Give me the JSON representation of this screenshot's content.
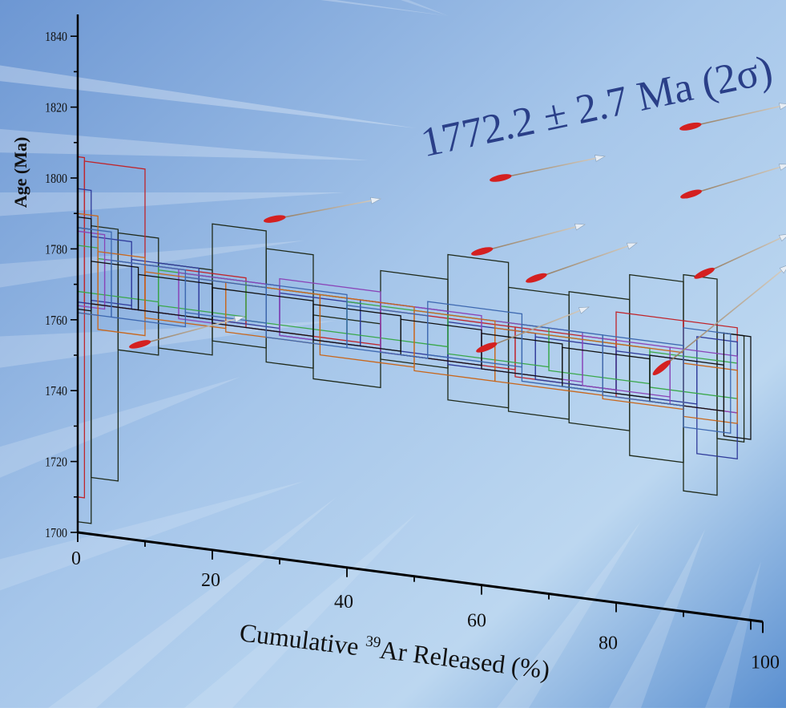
{
  "chart_data": {
    "type": "step",
    "title": "1772.2 ± 2.7 Ma (2σ)",
    "ylabel": "Age (Ma)",
    "xlabel": {
      "prefix": "Cumulative ",
      "superscript": "39",
      "suffix": "Ar Released (%)"
    },
    "xlim": [
      0,
      100
    ],
    "ylim": [
      1700,
      1845
    ],
    "x_ticks": [
      "0",
      "20",
      "40",
      "60",
      "80",
      "100"
    ],
    "y_ticks": [
      "1700",
      "1720",
      "1740",
      "1760",
      "1780",
      "1800",
      "1820",
      "1840"
    ],
    "plateau_age": 1772.2,
    "plateau_error_2sigma": 2.7,
    "grid": false,
    "legend": "none",
    "series": [
      {
        "color": "#1f2a1a",
        "steps": [
          [
            0,
            2,
            1703,
            1786
          ],
          [
            2,
            6,
            1716,
            1787
          ],
          [
            6,
            12,
            1753,
            1786
          ],
          [
            12,
            20,
            1755,
            1779
          ],
          [
            20,
            28,
            1759,
            1792
          ],
          [
            28,
            35,
            1755,
            1787
          ],
          [
            35,
            45,
            1752,
            1770
          ],
          [
            45,
            55,
            1760,
            1785
          ],
          [
            55,
            64,
            1751,
            1792
          ],
          [
            64,
            73,
            1750,
            1785
          ],
          [
            73,
            82,
            1749,
            1786
          ],
          [
            82,
            90,
            1742,
            1793
          ],
          [
            90,
            95,
            1734,
            1795
          ],
          [
            95,
            99,
            1750,
            1780
          ]
        ]
      },
      {
        "color": "#c0242a",
        "steps": [
          [
            0,
            1,
            1710,
            1806
          ],
          [
            1,
            10,
            1765,
            1805
          ],
          [
            10,
            25,
            1765,
            1778
          ],
          [
            25,
            45,
            1764,
            1776
          ],
          [
            45,
            65,
            1762,
            1774
          ],
          [
            65,
            80,
            1760,
            1774
          ],
          [
            80,
            90,
            1758,
            1782
          ],
          [
            90,
            98,
            1758,
            1782
          ]
        ]
      },
      {
        "color": "#2f3a9a",
        "steps": [
          [
            0,
            2,
            1765,
            1797
          ],
          [
            2,
            8,
            1766,
            1784
          ],
          [
            8,
            18,
            1765,
            1779
          ],
          [
            18,
            30,
            1765,
            1777
          ],
          [
            30,
            42,
            1763,
            1775
          ],
          [
            42,
            55,
            1763,
            1776
          ],
          [
            55,
            68,
            1761,
            1773
          ],
          [
            68,
            80,
            1760,
            1772
          ],
          [
            80,
            92,
            1759,
            1771
          ],
          [
            92,
            98,
            1745,
            1778
          ]
        ]
      },
      {
        "color": "#3aa84a",
        "steps": [
          [
            0,
            3,
            1768,
            1781
          ],
          [
            3,
            12,
            1768,
            1778
          ],
          [
            12,
            25,
            1767,
            1777
          ],
          [
            25,
            40,
            1766,
            1776
          ],
          [
            40,
            55,
            1766,
            1775
          ],
          [
            55,
            70,
            1764,
            1775
          ],
          [
            70,
            85,
            1763,
            1773
          ],
          [
            85,
            98,
            1762,
            1772
          ]
        ]
      },
      {
        "color": "#8a45b8",
        "steps": [
          [
            0,
            4,
            1764,
            1785
          ],
          [
            4,
            15,
            1765,
            1778
          ],
          [
            15,
            30,
            1764,
            1777
          ],
          [
            30,
            45,
            1763,
            1779
          ],
          [
            45,
            60,
            1762,
            1776
          ],
          [
            60,
            75,
            1761,
            1775
          ],
          [
            75,
            88,
            1760,
            1774
          ],
          [
            88,
            98,
            1758,
            1774
          ]
        ]
      },
      {
        "color": "#c8671c",
        "steps": [
          [
            0,
            3,
            1762,
            1790
          ],
          [
            3,
            10,
            1758,
            1780
          ],
          [
            10,
            22,
            1763,
            1776
          ],
          [
            22,
            36,
            1762,
            1776
          ],
          [
            36,
            50,
            1759,
            1776
          ],
          [
            50,
            62,
            1758,
            1775
          ],
          [
            62,
            78,
            1758,
            1773
          ],
          [
            78,
            90,
            1757,
            1773
          ],
          [
            90,
            98,
            1755,
            1770
          ]
        ]
      },
      {
        "color": "#111111",
        "steps": [
          [
            0,
            2,
            1763,
            1789
          ],
          [
            2,
            9,
            1765,
            1777
          ],
          [
            9,
            20,
            1765,
            1775
          ],
          [
            20,
            35,
            1764,
            1774
          ],
          [
            35,
            48,
            1763,
            1773
          ],
          [
            48,
            60,
            1762,
            1772
          ],
          [
            60,
            72,
            1761,
            1771
          ],
          [
            72,
            85,
            1759,
            1770
          ],
          [
            85,
            96,
            1758,
            1771
          ],
          [
            96,
            100,
            1751,
            1780
          ]
        ]
      },
      {
        "color": "#3d68b0",
        "steps": [
          [
            0,
            5,
            1762,
            1786
          ],
          [
            5,
            16,
            1762,
            1778
          ],
          [
            16,
            28,
            1766,
            1776
          ],
          [
            28,
            40,
            1762,
            1777
          ],
          [
            40,
            52,
            1762,
            1774
          ],
          [
            52,
            66,
            1763,
            1778
          ],
          [
            66,
            78,
            1759,
            1775
          ],
          [
            78,
            90,
            1758,
            1775
          ],
          [
            90,
            97,
            1752,
            1780
          ]
        ]
      }
    ]
  }
}
